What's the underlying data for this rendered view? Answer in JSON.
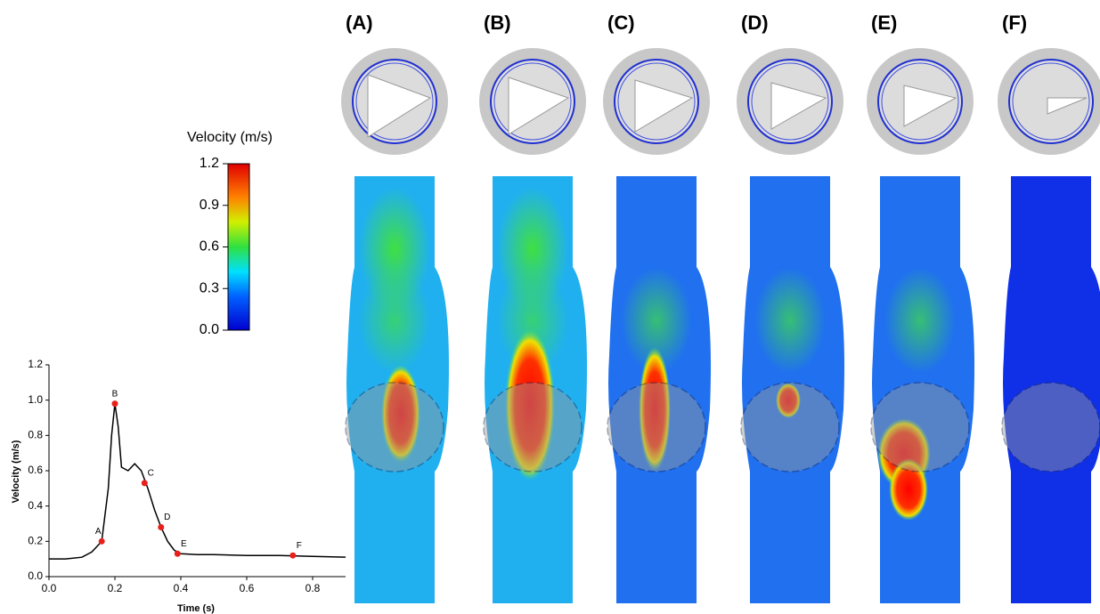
{
  "chart_data": {
    "type": "line",
    "xlabel": "Time (s)",
    "ylabel": "Velocity (m/s)",
    "x": [
      0,
      0.05,
      0.1,
      0.13,
      0.16,
      0.18,
      0.19,
      0.2,
      0.21,
      0.22,
      0.24,
      0.26,
      0.28,
      0.3,
      0.32,
      0.34,
      0.36,
      0.38,
      0.4,
      0.45,
      0.5,
      0.6,
      0.7,
      0.8,
      0.9
    ],
    "values": [
      0.1,
      0.1,
      0.11,
      0.14,
      0.2,
      0.5,
      0.8,
      0.98,
      0.85,
      0.62,
      0.6,
      0.64,
      0.6,
      0.5,
      0.38,
      0.28,
      0.2,
      0.15,
      0.13,
      0.125,
      0.125,
      0.12,
      0.12,
      0.115,
      0.11
    ],
    "color": "#000000",
    "markers": {
      "labels": [
        "A",
        "B",
        "C",
        "D",
        "E",
        "F"
      ],
      "x": [
        0.16,
        0.2,
        0.29,
        0.34,
        0.39,
        0.74
      ],
      "y": [
        0.2,
        0.98,
        0.53,
        0.28,
        0.13,
        0.12
      ],
      "color": "#e8201c"
    },
    "xlim": [
      0,
      0.9
    ],
    "ylim": [
      0,
      1.2
    ],
    "xticks": [
      {
        "value": 0,
        "label": "0.0"
      },
      {
        "value": 0.2,
        "label": "0.2"
      },
      {
        "value": 0.4,
        "label": "0.4"
      },
      {
        "value": 0.6,
        "label": "0.6"
      },
      {
        "value": 0.8,
        "label": "0.8"
      }
    ],
    "yticks": [
      {
        "value": 0,
        "label": "0.0"
      },
      {
        "value": 0.2,
        "label": "0.2"
      },
      {
        "value": 0.4,
        "label": "0.4"
      },
      {
        "value": 0.6,
        "label": "0.6"
      },
      {
        "value": 0.8,
        "label": "0.8"
      },
      {
        "value": 1.0,
        "label": "1.0"
      },
      {
        "value": 1.2,
        "label": "1.2"
      }
    ]
  },
  "colorbar": {
    "title": "Velocity (m/s)",
    "lim": [
      0,
      1.2
    ],
    "ticks": [
      {
        "value": 1.2,
        "label": "1.2"
      },
      {
        "value": 0.9,
        "label": "0.9"
      },
      {
        "value": 0.6,
        "label": "0.6"
      },
      {
        "value": 0.3,
        "label": "0.3"
      },
      {
        "value": 0,
        "label": "0.0"
      }
    ]
  },
  "panels": [
    "(A)",
    "(B)",
    "(C)",
    "(D)",
    "(E)",
    "(F)"
  ]
}
